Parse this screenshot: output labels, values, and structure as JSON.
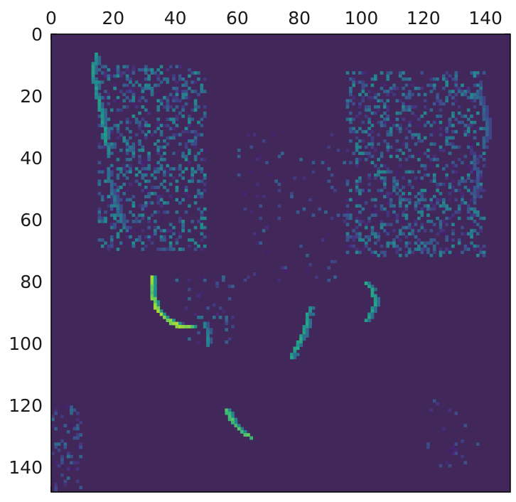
{
  "chart_data": {
    "type": "heatmap",
    "title": "",
    "xlabel": "",
    "ylabel": "",
    "xlim": [
      0,
      148
    ],
    "ylim": [
      148,
      0
    ],
    "x_axis_position": "top",
    "grid": false,
    "legend": "none",
    "colormap": "viridis",
    "background_color": "#41275a",
    "x_ticks": [
      0,
      20,
      40,
      60,
      80,
      100,
      120,
      140
    ],
    "y_ticks": [
      0,
      20,
      40,
      60,
      80,
      100,
      120,
      140
    ],
    "x_tick_labels": [
      "0",
      "20",
      "40",
      "60",
      "80",
      "100",
      "120",
      "140"
    ],
    "y_tick_labels": [
      "0",
      "20",
      "40",
      "60",
      "80",
      "100",
      "120",
      "140"
    ],
    "strokes": [
      {
        "name": "left-ear-outer-edge",
        "intensity": 0.55,
        "points": [
          [
            14,
            6
          ],
          [
            13,
            12
          ],
          [
            14,
            18
          ],
          [
            16,
            26
          ],
          [
            17,
            33
          ],
          [
            18,
            38
          ]
        ]
      },
      {
        "name": "left-ear-outer-lower",
        "intensity": 0.4,
        "points": [
          [
            18,
            44
          ],
          [
            19,
            50
          ],
          [
            21,
            56
          ],
          [
            23,
            62
          ]
        ]
      },
      {
        "name": "left-eye-arc",
        "intensity": 0.85,
        "points": [
          [
            32,
            78
          ],
          [
            32,
            84
          ],
          [
            34,
            89
          ],
          [
            37,
            92
          ],
          [
            41,
            94
          ],
          [
            45,
            94
          ]
        ]
      },
      {
        "name": "left-eye-tail",
        "intensity": 0.45,
        "points": [
          [
            49,
            93
          ],
          [
            50,
            96
          ],
          [
            50,
            100
          ]
        ]
      },
      {
        "name": "nose-right-edge",
        "intensity": 0.6,
        "points": [
          [
            83,
            88
          ],
          [
            82,
            92
          ],
          [
            81,
            96
          ],
          [
            79,
            100
          ],
          [
            77,
            104
          ]
        ]
      },
      {
        "name": "right-eye-arc",
        "intensity": 0.6,
        "points": [
          [
            101,
            80
          ],
          [
            103,
            82
          ],
          [
            104,
            86
          ],
          [
            103,
            89
          ],
          [
            101,
            92
          ]
        ]
      },
      {
        "name": "mouth-curve",
        "intensity": 0.75,
        "points": [
          [
            56,
            121
          ],
          [
            58,
            125
          ],
          [
            61,
            128
          ],
          [
            64,
            130
          ]
        ]
      },
      {
        "name": "right-ear-outer-edge",
        "intensity": 0.35,
        "points": [
          [
            137,
            18
          ],
          [
            139,
            24
          ],
          [
            140,
            30
          ],
          [
            139,
            36
          ]
        ]
      },
      {
        "name": "right-ear-inner-edge",
        "intensity": 0.3,
        "points": [
          [
            136,
            40
          ],
          [
            137,
            46
          ],
          [
            136,
            52
          ]
        ]
      }
    ],
    "speckle_regions": [
      {
        "name": "left-ear",
        "x_range": [
          15,
          50
        ],
        "y_range": [
          10,
          70
        ],
        "density": 0.32,
        "max_intensity": 0.42
      },
      {
        "name": "right-ear",
        "x_range": [
          95,
          140
        ],
        "y_range": [
          12,
          72
        ],
        "density": 0.3,
        "max_intensity": 0.4
      },
      {
        "name": "forehead",
        "x_range": [
          60,
          95
        ],
        "y_range": [
          32,
          80
        ],
        "density": 0.05,
        "max_intensity": 0.25
      },
      {
        "name": "left-cheek",
        "x_range": [
          40,
          60
        ],
        "y_range": [
          78,
          100
        ],
        "density": 0.06,
        "max_intensity": 0.3
      },
      {
        "name": "bottom-left-corner",
        "x_range": [
          0,
          10
        ],
        "y_range": [
          120,
          148
        ],
        "density": 0.22,
        "max_intensity": 0.3
      },
      {
        "name": "lower-right",
        "x_range": [
          120,
          140
        ],
        "y_range": [
          118,
          140
        ],
        "density": 0.04,
        "max_intensity": 0.2
      }
    ]
  }
}
